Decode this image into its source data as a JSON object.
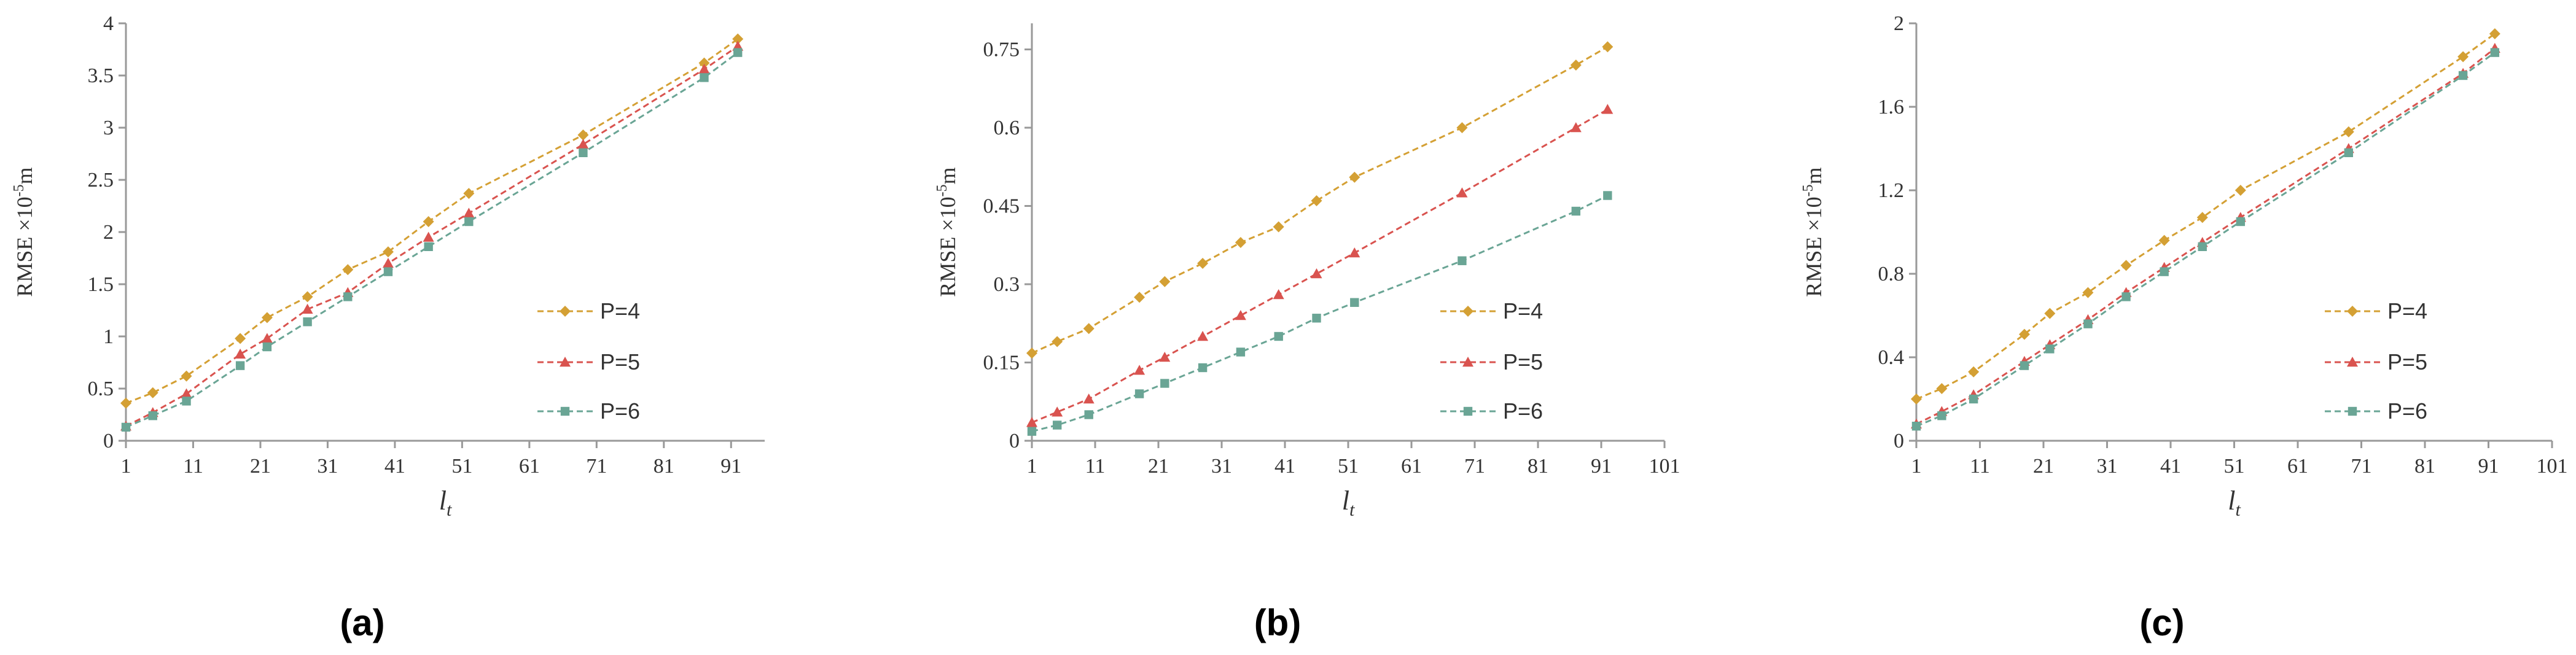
{
  "colors": {
    "p4": "#d4a034",
    "p5": "#d9534f",
    "p6": "#6aa595",
    "axis": "#999999"
  },
  "chart_data": [
    {
      "type": "line",
      "caption": "(a)",
      "ylabel_main": "RMSE ×10",
      "ylabel_exp": "-5",
      "ylabel_unit": "m",
      "xlabel_main": "l",
      "xlabel_sub": "t",
      "xlim": [
        1,
        96
      ],
      "ylim": [
        0,
        4
      ],
      "xticks": [
        1,
        11,
        21,
        31,
        41,
        51,
        61,
        71,
        81,
        91
      ],
      "xtick_labels": [
        "1",
        "11",
        "21",
        "31",
        "41",
        "51",
        "61",
        "71",
        "81",
        "91"
      ],
      "yticks": [
        0,
        0.5,
        1,
        1.5,
        2,
        2.5,
        3,
        3.5,
        4
      ],
      "ytick_labels": [
        "0",
        "0.5",
        "1",
        "1.5",
        "2",
        "2.5",
        "3",
        "3.5",
        "4"
      ],
      "x": [
        1,
        5,
        10,
        18,
        22,
        28,
        34,
        40,
        46,
        52,
        69,
        87,
        92
      ],
      "series": [
        {
          "name": "P=4",
          "marker": "diamond",
          "values": [
            0.36,
            0.46,
            0.62,
            0.98,
            1.18,
            1.38,
            1.64,
            1.81,
            2.1,
            2.37,
            2.93,
            3.62,
            3.85
          ]
        },
        {
          "name": "P=5",
          "marker": "triangle",
          "values": [
            0.14,
            0.27,
            0.45,
            0.83,
            0.98,
            1.26,
            1.42,
            1.7,
            1.95,
            2.18,
            2.84,
            3.56,
            3.78
          ]
        },
        {
          "name": "P=6",
          "marker": "square",
          "values": [
            0.13,
            0.24,
            0.38,
            0.72,
            0.9,
            1.14,
            1.38,
            1.62,
            1.86,
            2.1,
            2.76,
            3.48,
            3.72
          ]
        }
      ]
    },
    {
      "type": "line",
      "caption": "(b)",
      "ylabel_main": "RMSE ×10",
      "ylabel_exp": "-5",
      "ylabel_unit": "m",
      "xlabel_main": "l",
      "xlabel_sub": "t",
      "xlim": [
        1,
        101
      ],
      "ylim": [
        0,
        0.8
      ],
      "xticks": [
        1,
        11,
        21,
        31,
        41,
        51,
        61,
        71,
        81,
        91,
        101
      ],
      "xtick_labels": [
        "1",
        "11",
        "21",
        "31",
        "41",
        "51",
        "61",
        "71",
        "81",
        "91",
        "101"
      ],
      "yticks": [
        0,
        0.15,
        0.3,
        0.45,
        0.6,
        0.75
      ],
      "ytick_labels": [
        "0",
        "0.15",
        "0.3",
        "0.45",
        "0.6",
        "0.75"
      ],
      "x": [
        1,
        5,
        10,
        18,
        22,
        28,
        34,
        40,
        46,
        52,
        69,
        87,
        92
      ],
      "series": [
        {
          "name": "P=4",
          "marker": "diamond",
          "values": [
            0.168,
            0.19,
            0.215,
            0.275,
            0.305,
            0.34,
            0.38,
            0.41,
            0.46,
            0.505,
            0.6,
            0.72,
            0.755
          ]
        },
        {
          "name": "P=5",
          "marker": "triangle",
          "values": [
            0.035,
            0.055,
            0.08,
            0.135,
            0.16,
            0.2,
            0.24,
            0.28,
            0.32,
            0.36,
            0.475,
            0.6,
            0.635
          ]
        },
        {
          "name": "P=6",
          "marker": "square",
          "values": [
            0.018,
            0.03,
            0.05,
            0.09,
            0.11,
            0.14,
            0.17,
            0.2,
            0.235,
            0.265,
            0.345,
            0.44,
            0.47
          ]
        }
      ]
    },
    {
      "type": "line",
      "caption": "(c)",
      "ylabel_main": "RMSE ×10",
      "ylabel_exp": "-5",
      "ylabel_unit": "m",
      "xlabel_main": "l",
      "xlabel_sub": "t",
      "xlim": [
        1,
        101
      ],
      "ylim": [
        0,
        2
      ],
      "xticks": [
        1,
        11,
        21,
        31,
        41,
        51,
        61,
        71,
        81,
        91,
        101
      ],
      "xtick_labels": [
        "1",
        "11",
        "21",
        "31",
        "41",
        "51",
        "61",
        "71",
        "81",
        "91",
        "101"
      ],
      "yticks": [
        0,
        0.4,
        0.8,
        1.2,
        1.6,
        2
      ],
      "ytick_labels": [
        "0",
        "0.4",
        "0.8",
        "1.2",
        "1.6",
        "2"
      ],
      "x": [
        1,
        5,
        10,
        18,
        22,
        28,
        34,
        40,
        46,
        52,
        69,
        87,
        92
      ],
      "series": [
        {
          "name": "P=4",
          "marker": "diamond",
          "values": [
            0.2,
            0.25,
            0.33,
            0.51,
            0.61,
            0.71,
            0.84,
            0.96,
            1.07,
            1.2,
            1.48,
            1.84,
            1.95
          ]
        },
        {
          "name": "P=5",
          "marker": "triangle",
          "values": [
            0.08,
            0.14,
            0.22,
            0.38,
            0.46,
            0.58,
            0.71,
            0.83,
            0.95,
            1.07,
            1.4,
            1.76,
            1.88
          ]
        },
        {
          "name": "P=6",
          "marker": "square",
          "values": [
            0.07,
            0.12,
            0.2,
            0.36,
            0.44,
            0.56,
            0.69,
            0.81,
            0.93,
            1.05,
            1.38,
            1.75,
            1.86
          ]
        }
      ]
    }
  ]
}
